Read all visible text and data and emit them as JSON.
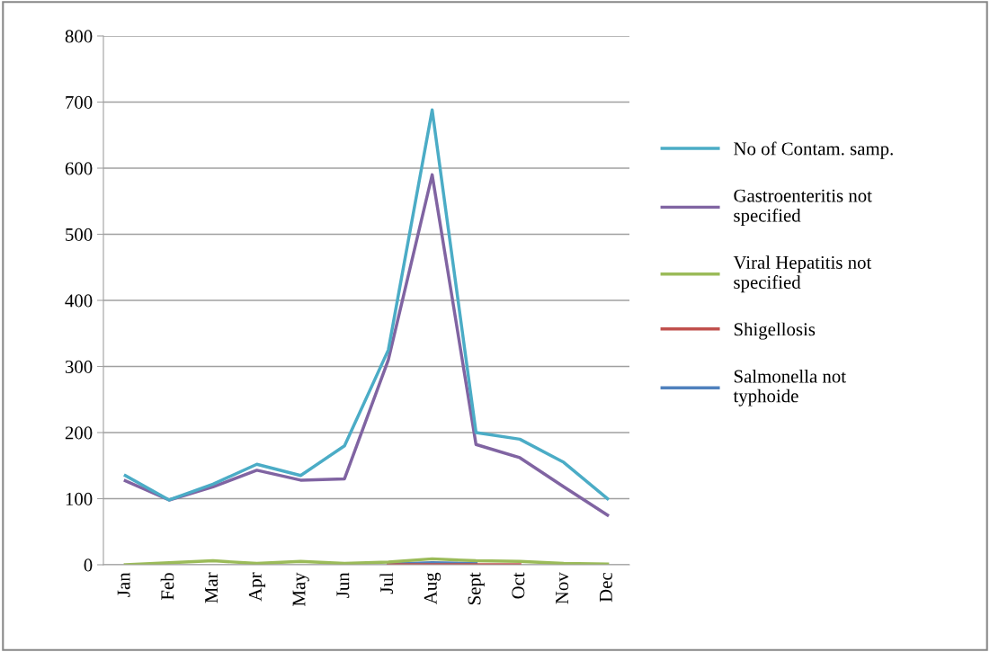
{
  "chart_data": {
    "type": "line",
    "categories": [
      "Jan",
      "Feb",
      "Mar",
      "Apr",
      "May",
      "Jun",
      "Jul",
      "Aug",
      "Sept",
      "Oct",
      "Nov",
      "Dec"
    ],
    "series": [
      {
        "name": "No of Contam. samp.",
        "color": "#4bacc6",
        "values": [
          135,
          98,
          122,
          152,
          135,
          180,
          325,
          688,
          200,
          190,
          155,
          100
        ]
      },
      {
        "name": "Gastroenteritis not specified",
        "color": "#8064a2",
        "values": [
          127,
          98,
          118,
          143,
          128,
          130,
          310,
          590,
          182,
          162,
          118,
          75
        ]
      },
      {
        "name": "Viral Hepatitis not specified",
        "color": "#9bbb59",
        "values": [
          0,
          3,
          6,
          2,
          5,
          2,
          4,
          9,
          6,
          5,
          2,
          1
        ]
      },
      {
        "name": "Shigellosis",
        "color": "#c0504d",
        "values": [
          null,
          null,
          null,
          null,
          null,
          null,
          0,
          0,
          0,
          0,
          null,
          null
        ]
      },
      {
        "name": "Salmonella not typhoide",
        "color": "#4f81bd",
        "values": [
          null,
          null,
          null,
          null,
          null,
          null,
          1,
          3,
          2,
          null,
          null,
          null
        ]
      }
    ],
    "ylim": [
      0,
      800
    ],
    "yticks": [
      0,
      100,
      200,
      300,
      400,
      500,
      600,
      700,
      800
    ],
    "grid": "y",
    "legend": "right",
    "marker": "none",
    "line_style": "solid"
  }
}
